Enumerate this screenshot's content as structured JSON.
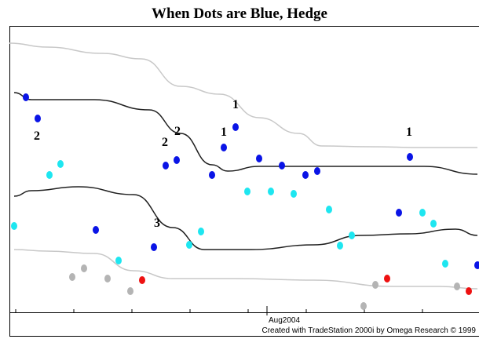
{
  "chart_data": {
    "type": "scatter",
    "title": "When Dots are Blue, Hedge",
    "xlim": [
      0,
      596
    ],
    "ylim": [
      0,
      365
    ],
    "xticks": [
      {
        "value": 328,
        "label": "Aug2004"
      }
    ],
    "credit": "Created with TradeStation 2000i by Omega Research © 1999",
    "annotations": [
      "2",
      "2",
      "2",
      "1",
      "1",
      "3",
      "1"
    ],
    "lines": [
      {
        "color": "#c8c8c8",
        "x": [
          0,
          48,
          118,
          168,
          218,
          268,
          318,
          368,
          398,
          458,
          528,
          596
        ],
        "values": [
          343,
          338,
          330,
          323,
          288,
          278,
          248,
          228,
          212,
          211,
          210,
          210
        ]
      },
      {
        "color": "#202020",
        "x": [
          6,
          28,
          108,
          178,
          218,
          258,
          278,
          318,
          368,
          448,
          528,
          596
        ],
        "values": [
          280,
          271,
          271,
          258,
          228,
          188,
          180,
          186,
          186,
          186,
          186,
          176
        ]
      },
      {
        "color": "#202020",
        "x": [
          6,
          28,
          88,
          158,
          208,
          248,
          308,
          388,
          448,
          508,
          568,
          596
        ],
        "values": [
          148,
          155,
          160,
          150,
          108,
          80,
          80,
          86,
          98,
          100,
          106,
          98
        ]
      },
      {
        "color": "#c8c8c8",
        "x": [
          6,
          48,
          108,
          158,
          208,
          288,
          388,
          488,
          548,
          596
        ],
        "values": [
          80,
          78,
          75,
          53,
          43,
          43,
          41,
          33,
          33,
          30
        ]
      }
    ],
    "series": [
      {
        "color": "#0a14e6",
        "x": [
          21,
          36,
          110,
          184,
          199,
          213,
          258,
          273,
          288,
          318,
          347,
          377,
          392,
          496,
          510,
          596
        ],
        "values": [
          274,
          247,
          105,
          83,
          187,
          194,
          175,
          210,
          236,
          196,
          187,
          175,
          180,
          127,
          198,
          60
        ]
      },
      {
        "color": "#1ee6f0",
        "x": [
          6,
          51,
          65,
          139,
          229,
          244,
          303,
          333,
          362,
          407,
          421,
          436,
          526,
          540,
          555
        ],
        "values": [
          110,
          175,
          189,
          66,
          86,
          103,
          154,
          154,
          151,
          131,
          85,
          98,
          127,
          113,
          62
        ]
      },
      {
        "color": "#ee1111",
        "x": [
          169,
          481,
          585
        ],
        "values": [
          41,
          43,
          27
        ]
      },
      {
        "color": "#b4b4b4",
        "x": [
          80,
          95,
          125,
          154,
          451,
          466,
          570
        ],
        "values": [
          45,
          56,
          43,
          27,
          8,
          35,
          33
        ]
      }
    ]
  }
}
